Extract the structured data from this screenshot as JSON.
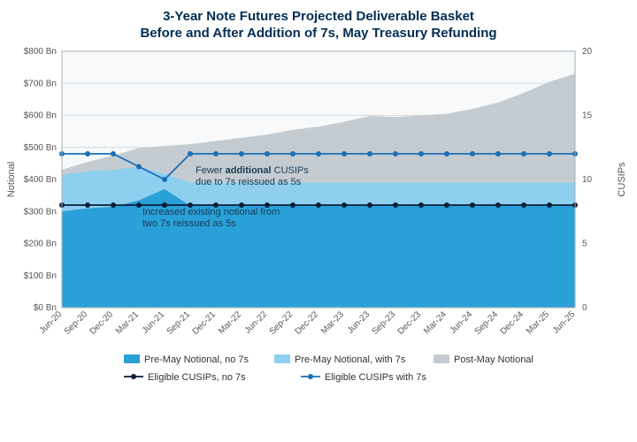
{
  "title_line1": "3-Year Note Futures Projected Deliverable Basket",
  "title_line2": "Before and After Addition of 7s, May Treasury Refunding",
  "title_fontsize": 15,
  "title_color": "#022d52",
  "background_color": "#ffffff",
  "plot_background": "#f7f9fa",
  "plot_border_color": "#aab2b8",
  "grid_color": "#d4dade",
  "y_left": {
    "label": "Notional",
    "min": 0,
    "max": 800,
    "step": 100,
    "format_prefix": "$",
    "format_suffix": " Bn",
    "ticks": [
      "$0 Bn",
      "$100 Bn",
      "$200 Bn",
      "$300 Bn",
      "$400 Bn",
      "$500 Bn",
      "$600 Bn",
      "$700 Bn",
      "$800 Bn"
    ]
  },
  "y_right": {
    "label": "CUSIPs",
    "min": 0,
    "max": 20,
    "step": 5,
    "ticks": [
      "0",
      "5",
      "10",
      "15",
      "20"
    ]
  },
  "x_categories": [
    "Jun-20",
    "Sep-20",
    "Dec-20",
    "Mar-21",
    "Jun-21",
    "Sep-21",
    "Dec-21",
    "Mar-22",
    "Jun-22",
    "Sep-22",
    "Dec-22",
    "Mar-23",
    "Jun-23",
    "Sep-23",
    "Dec-23",
    "Mar-24",
    "Jun-24",
    "Sep-24",
    "Dec-24",
    "Mar-25",
    "Jun-25"
  ],
  "series": {
    "pre_may_no7s": {
      "label": "Pre-May Notional, no 7s",
      "type": "area",
      "color": "#2aa0d8",
      "values": [
        300,
        310,
        315,
        335,
        370,
        318,
        320,
        320,
        320,
        320,
        320,
        320,
        320,
        320,
        320,
        320,
        320,
        320,
        320,
        320,
        320
      ]
    },
    "pre_may_with7s": {
      "label": "Pre-May Notional, with 7s",
      "type": "area",
      "color": "#8ecff0",
      "values": [
        415,
        425,
        430,
        440,
        418,
        390,
        390,
        390,
        390,
        390,
        390,
        390,
        390,
        390,
        390,
        390,
        390,
        390,
        390,
        390,
        390
      ]
    },
    "post_may": {
      "label": "Post-May Notional",
      "type": "area",
      "color": "#c4ccd2",
      "values": [
        430,
        455,
        475,
        498,
        505,
        510,
        520,
        530,
        540,
        555,
        565,
        580,
        598,
        595,
        600,
        605,
        620,
        640,
        670,
        705,
        730
      ]
    },
    "cusips_no7s": {
      "label": "Eligible CUSIPs, no 7s",
      "type": "line",
      "color": "#0a1f3a",
      "marker": "circle",
      "values": [
        8,
        8,
        8,
        8,
        8,
        8,
        8,
        8,
        8,
        8,
        8,
        8,
        8,
        8,
        8,
        8,
        8,
        8,
        8,
        8,
        8
      ]
    },
    "cusips_with7s": {
      "label": "Eligible CUSIPs with 7s",
      "type": "line",
      "color": "#1b6fb5",
      "marker": "circle",
      "values": [
        12,
        12,
        12,
        11,
        10,
        12,
        12,
        12,
        12,
        12,
        12,
        12,
        12,
        12,
        12,
        12,
        12,
        12,
        12,
        12,
        12
      ]
    }
  },
  "annotations": {
    "a1_prefix": "Fewer ",
    "a1_bold": "additional",
    "a1_suffix": " CUSIPs",
    "a1_line2": "due to 7s reissued as 5s",
    "a2_line1": "Increased existing notional from",
    "a2_line2": "two 7s reissued as 5s"
  },
  "line_width": 1.8,
  "marker_radius": 3,
  "legend_swatch": 18,
  "legend_swatch_h": 10
}
